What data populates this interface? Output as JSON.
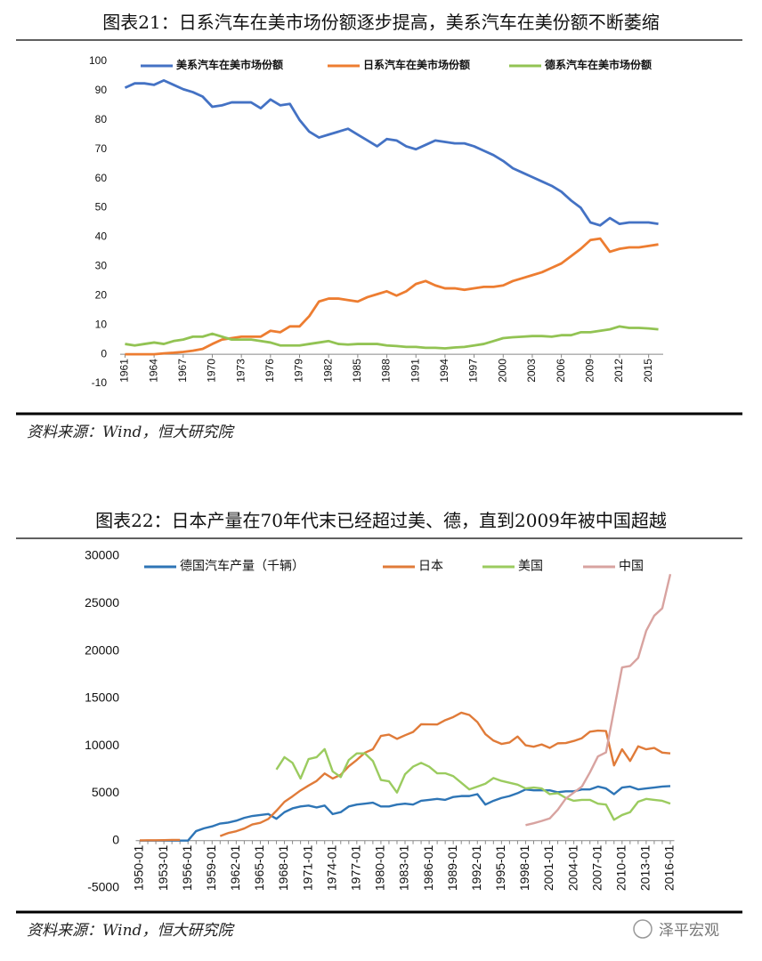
{
  "chart_data": [
    {
      "type": "line",
      "title": "图表21：日系汽车在美市场份额逐步提高，美系汽车在美份额不断萎缩",
      "source": "资料来源：Wind，恒大研究院",
      "x": [
        1961,
        1962,
        1963,
        1964,
        1965,
        1966,
        1967,
        1968,
        1969,
        1970,
        1971,
        1972,
        1973,
        1974,
        1975,
        1976,
        1977,
        1978,
        1979,
        1980,
        1981,
        1982,
        1983,
        1984,
        1985,
        1986,
        1987,
        1988,
        1989,
        1990,
        1991,
        1992,
        1993,
        1994,
        1995,
        1996,
        1997,
        1998,
        1999,
        2000,
        2001,
        2002,
        2003,
        2004,
        2005,
        2006,
        2007,
        2008,
        2009,
        2010,
        2011,
        2012,
        2013,
        2014,
        2015,
        2016
      ],
      "xlim": [
        1960.5,
        2016.5
      ],
      "xticks": [
        1961,
        1964,
        1967,
        1970,
        1973,
        1976,
        1979,
        1982,
        1985,
        1988,
        1991,
        1994,
        1997,
        2000,
        2003,
        2006,
        2009,
        2012,
        2015
      ],
      "ylim": [
        -10,
        100
      ],
      "yticks": [
        -10,
        0,
        10,
        20,
        30,
        40,
        50,
        60,
        70,
        80,
        90,
        100
      ],
      "series": [
        {
          "name": "美系汽车在美市场份额",
          "color": "#4472c4",
          "values": [
            91,
            92.5,
            92.5,
            92,
            93.5,
            92,
            90.5,
            89.5,
            88,
            84.5,
            85,
            86,
            86,
            86,
            84,
            87,
            85,
            85.5,
            80,
            76,
            74,
            75,
            76,
            77,
            75,
            73,
            71,
            73.5,
            73,
            71,
            70,
            71.5,
            73,
            72.5,
            72,
            72,
            71,
            69.5,
            68,
            66,
            63.5,
            62,
            60.5,
            59,
            57.5,
            55.5,
            52.5,
            50,
            45,
            44,
            46.5,
            44.5,
            45,
            45,
            45,
            44.5
          ]
        },
        {
          "name": "日系汽车在美市场份额",
          "color": "#ed7d31",
          "values": [
            0,
            0,
            0,
            0,
            0.3,
            0.5,
            0.8,
            1.2,
            1.8,
            3.5,
            5,
            5.5,
            6,
            6,
            6,
            8,
            7.5,
            9.5,
            9.5,
            13,
            18,
            19,
            19,
            18.5,
            18,
            19.5,
            20.5,
            21.5,
            20,
            21.5,
            24,
            25,
            23.5,
            22.5,
            22.5,
            22,
            22.5,
            23,
            23,
            23.5,
            25,
            26,
            27,
            28,
            29.5,
            31,
            33.5,
            36,
            39,
            39.5,
            35,
            36,
            36.5,
            36.5,
            37,
            37.5
          ]
        },
        {
          "name": "德系汽车在美市场份额",
          "color": "#92c353",
          "values": [
            3.5,
            3,
            3.5,
            4,
            3.5,
            4.5,
            5,
            6,
            6,
            7,
            6,
            5,
            5,
            5,
            4.5,
            4,
            3,
            3,
            3,
            3.5,
            4,
            4.5,
            3.5,
            3.3,
            3.5,
            3.5,
            3.5,
            3,
            2.8,
            2.5,
            2.5,
            2.2,
            2.2,
            2,
            2.3,
            2.5,
            3,
            3.5,
            4.5,
            5.5,
            5.8,
            6,
            6.2,
            6.2,
            6,
            6.5,
            6.5,
            7.5,
            7.5,
            8,
            8.5,
            9.5,
            9,
            9,
            8.8,
            8.5
          ]
        }
      ]
    },
    {
      "type": "line",
      "title": "图表22：日本产量在70年代末已经超过美、德，直到2009年被中国超越",
      "source": "资料来源：Wind，恒大研究院",
      "categories": [
        "1950-01",
        null,
        null,
        "1953-01",
        null,
        null,
        "1956-01",
        null,
        null,
        "1959-01",
        null,
        null,
        "1962-01",
        null,
        null,
        "1965-01",
        null,
        null,
        "1968-01",
        null,
        null,
        "1971-01",
        null,
        null,
        "1974-01",
        null,
        null,
        "1977-01",
        null,
        null,
        "1980-01",
        null,
        null,
        "1983-01",
        null,
        null,
        "1986-01",
        null,
        null,
        "1989-01",
        null,
        null,
        "1992-01",
        null,
        null,
        "1995-01",
        null,
        null,
        "1998-01",
        null,
        null,
        "2001-01",
        null,
        null,
        "2004-01",
        null,
        null,
        "2007-01",
        null,
        null,
        "2010-01",
        null,
        null,
        "2013-01",
        null,
        null,
        "2016-01"
      ],
      "ylim": [
        -5000,
        30000
      ],
      "yticks": [
        -5000,
        0,
        5000,
        10000,
        15000,
        20000,
        25000,
        30000
      ],
      "series": [
        {
          "name": "德国汽车产量（千辆）",
          "color": "#2e75b6",
          "values": [
            0,
            0,
            0,
            0,
            0,
            0,
            0,
            1000,
            1300,
            1500,
            1800,
            1900,
            2100,
            2400,
            2600,
            2700,
            2800,
            2300,
            3000,
            3400,
            3600,
            3700,
            3500,
            3700,
            2800,
            3000,
            3600,
            3800,
            3900,
            4000,
            3600,
            3600,
            3800,
            3900,
            3800,
            4200,
            4300,
            4400,
            4300,
            4600,
            4700,
            4700,
            4900,
            3800,
            4200,
            4500,
            4700,
            5000,
            5400,
            5300,
            5300,
            5300,
            5100,
            5200,
            5200,
            5400,
            5400,
            5700,
            5500,
            4900,
            5600,
            5700,
            5400,
            5500,
            5600,
            5700,
            5750
          ]
        },
        {
          "name": "日本",
          "color": "#e07b39",
          "values": [
            30,
            40,
            40,
            50,
            70,
            70,
            null,
            null,
            null,
            null,
            480,
            800,
            990,
            1280,
            1700,
            1880,
            2290,
            3150,
            4090,
            4670,
            5290,
            5810,
            6290,
            7080,
            6550,
            6940,
            7840,
            8510,
            9270,
            9640,
            11040,
            11180,
            10730,
            11110,
            11460,
            12270,
            12260,
            12250,
            12700,
            13030,
            13490,
            13250,
            12500,
            11230,
            10550,
            10200,
            10350,
            10980,
            10050,
            9900,
            10140,
            9780,
            10260,
            10290,
            10510,
            10800,
            11480,
            11600,
            11560,
            7930,
            9630,
            8400,
            9940,
            9630,
            9770,
            9280,
            9200
          ]
        },
        {
          "name": "美国",
          "color": "#9bcb5f",
          "values": [
            null,
            null,
            null,
            null,
            null,
            null,
            null,
            null,
            null,
            null,
            null,
            null,
            null,
            null,
            null,
            null,
            null,
            7500,
            8800,
            8200,
            6550,
            8600,
            8800,
            9650,
            7300,
            6700,
            8500,
            9200,
            9200,
            8400,
            6400,
            6250,
            5070,
            7000,
            7800,
            8200,
            7800,
            7100,
            7100,
            6800,
            6100,
            5400,
            5700,
            6000,
            6600,
            6300,
            6100,
            5900,
            5500,
            5600,
            5500,
            4900,
            5000,
            4500,
            4200,
            4300,
            4300,
            3900,
            3800,
            2200,
            2700,
            3000,
            4100,
            4400,
            4300,
            4200,
            3900
          ]
        },
        {
          "name": "中国",
          "color": "#d8a3a0",
          "values": [
            null,
            null,
            null,
            null,
            null,
            null,
            null,
            null,
            null,
            null,
            null,
            null,
            null,
            null,
            null,
            null,
            null,
            null,
            null,
            null,
            null,
            null,
            null,
            null,
            null,
            null,
            null,
            null,
            null,
            null,
            null,
            null,
            null,
            null,
            null,
            null,
            null,
            null,
            null,
            null,
            null,
            null,
            null,
            null,
            null,
            null,
            null,
            null,
            1630,
            1830,
            2070,
            2340,
            3250,
            4440,
            5070,
            5700,
            7190,
            8880,
            9300,
            13790,
            18260,
            18420,
            19270,
            22120,
            23720,
            24500,
            28100
          ]
        }
      ]
    }
  ],
  "watermark": "泽平宏观"
}
